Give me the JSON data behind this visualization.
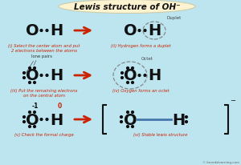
{
  "title": "Lewis structure of OH⁻",
  "bg_color": "#bce5f0",
  "title_bg": "#fdf3d0",
  "title_color": "#111111",
  "red_label_color": "#cc2200",
  "arrow_color": "#cc2200",
  "atom_color": "#111111",
  "dot_color": "#111111",
  "watermark": "© knordslearning.com",
  "panel_labels": [
    "(i) Select the center atom and put\n2 electrons between the atoms",
    "(ii) Hydrogen forms a duplet",
    "(iii) Put the remaining electrons\non the central atom",
    "(iv) Oxygen forms an octet",
    "(v) Check the formal charge",
    "(vi) Stable lewis structure"
  ],
  "duplet_label": "Duplet",
  "lone_pairs_label": "lone pairs",
  "octet_label": "Octet",
  "formal_charges": [
    "-1",
    "0"
  ]
}
